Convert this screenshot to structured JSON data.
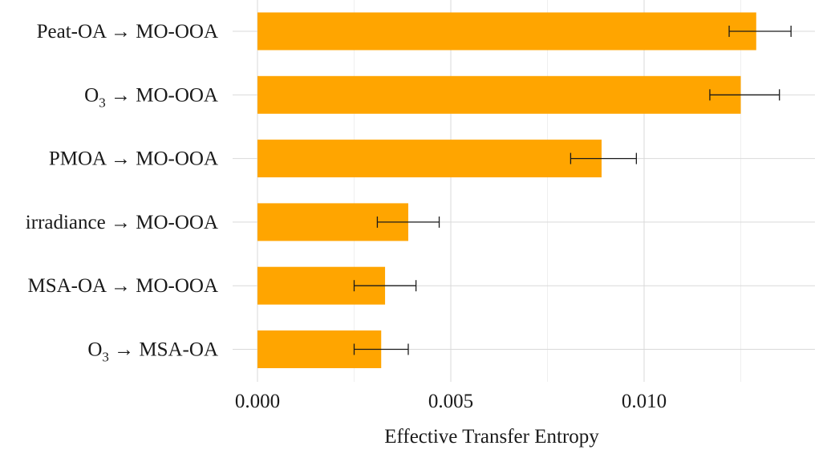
{
  "chart_data": {
    "type": "bar",
    "orientation": "horizontal",
    "categories": [
      "Peat-OA → MO-OOA",
      "O3 → MO-OOA",
      "PMOA → MO-OOA",
      "irradiance → MO-OOA",
      "MSA-OA → MO-OOA",
      "O3 → MSA-OA"
    ],
    "category_parts": [
      {
        "main": "Peat-OA → MO-OOA",
        "sub": "",
        "rest": ""
      },
      {
        "main": "O",
        "sub": "3",
        "rest": " → MO-OOA"
      },
      {
        "main": "PMOA → MO-OOA",
        "sub": "",
        "rest": ""
      },
      {
        "main": "irradiance → MO-OOA",
        "sub": "",
        "rest": ""
      },
      {
        "main": "MSA-OA → MO-OOA",
        "sub": "",
        "rest": ""
      },
      {
        "main": "O",
        "sub": "3",
        "rest": " → MSA-OA"
      }
    ],
    "values": [
      0.0129,
      0.0125,
      0.0089,
      0.0039,
      0.0033,
      0.0032
    ],
    "error_low": [
      0.0122,
      0.0117,
      0.0081,
      0.0031,
      0.0025,
      0.0025
    ],
    "error_high": [
      0.0138,
      0.0135,
      0.0098,
      0.0047,
      0.0041,
      0.0039
    ],
    "xlabel": "Effective Transfer Entropy",
    "ylabel": "",
    "xlim": [
      0,
      0.0144
    ],
    "xticks": [
      0.0,
      0.005,
      0.01
    ],
    "xtick_labels": [
      "0.000",
      "0.005",
      "0.010"
    ],
    "grid": true,
    "bar_color": "#ffa500",
    "error_color": "#1a1a1a"
  }
}
